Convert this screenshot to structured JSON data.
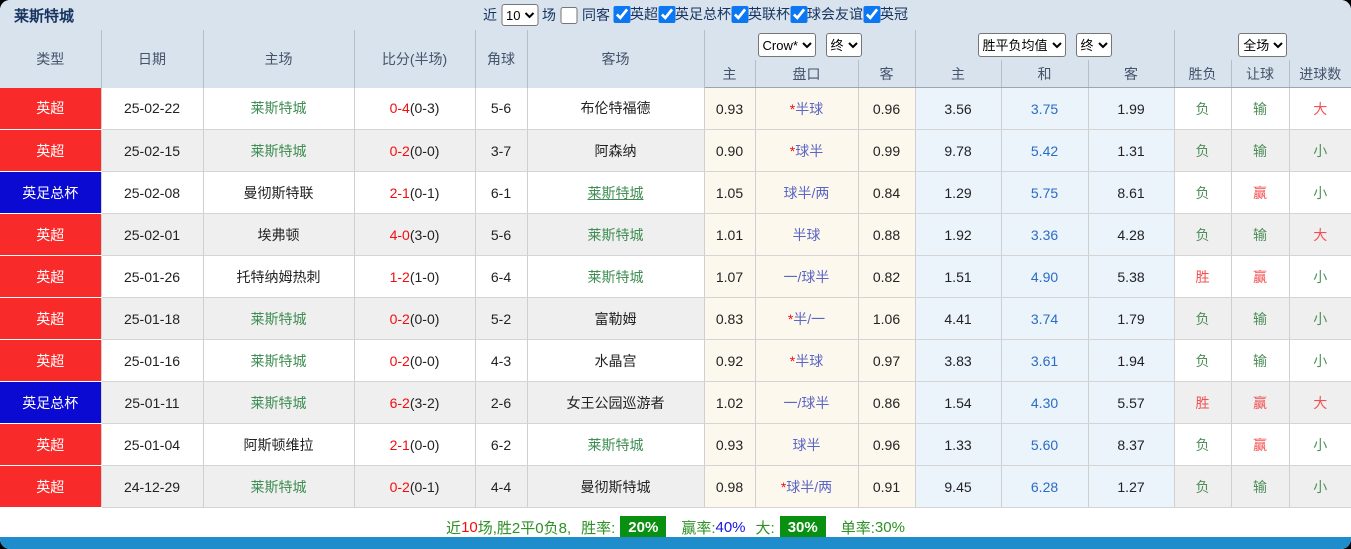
{
  "title": "莱斯特城",
  "filters": {
    "recent_label": "近",
    "recent_value": "10",
    "games_label": "场",
    "same_opponent_label": "同客",
    "same_opponent_checked": false,
    "leagues": [
      {
        "label": "英超",
        "checked": true
      },
      {
        "label": "英足总杯",
        "checked": true
      },
      {
        "label": "英联杯",
        "checked": true
      },
      {
        "label": "球会友谊",
        "checked": true
      },
      {
        "label": "英冠",
        "checked": true
      }
    ]
  },
  "header": {
    "left_columns": [
      "类型",
      "日期",
      "主场",
      "比分(半场)",
      "角球",
      "客场"
    ],
    "dropdowns": {
      "odds_source": "Crow*",
      "odds_time": "终",
      "avg_source": "胜平负均值",
      "avg_time": "终",
      "scope": "全场"
    },
    "sub_columns": [
      "主",
      "盘口",
      "客",
      "主",
      "和",
      "客",
      "胜负",
      "让球",
      "进球数"
    ]
  },
  "rows": [
    {
      "type": "英超",
      "date": "25-02-22",
      "home": "莱斯特城",
      "score_ft": "0-4",
      "score_ht": "(0-3)",
      "corners": "5-6",
      "away": "布伦特福德",
      "away_underline": false,
      "odds_home": "0.93",
      "handicap_star": "*",
      "handicap": "半球",
      "odds_away": "0.96",
      "avg_home": "3.56",
      "avg_draw": "3.75",
      "avg_away": "1.99",
      "result": "负",
      "handicap_result": "输",
      "goals": "大"
    },
    {
      "type": "英超",
      "date": "25-02-15",
      "home": "莱斯特城",
      "score_ft": "0-2",
      "score_ht": "(0-0)",
      "corners": "3-7",
      "away": "阿森纳",
      "away_underline": false,
      "odds_home": "0.90",
      "handicap_star": "*",
      "handicap": "球半",
      "odds_away": "0.99",
      "avg_home": "9.78",
      "avg_draw": "5.42",
      "avg_away": "1.31",
      "result": "负",
      "handicap_result": "输",
      "goals": "小"
    },
    {
      "type": "英足总杯",
      "date": "25-02-08",
      "home": "曼彻斯特联",
      "score_ft": "2-1",
      "score_ht": "(0-1)",
      "corners": "6-1",
      "away": "莱斯特城",
      "away_underline": true,
      "odds_home": "1.05",
      "handicap_star": "",
      "handicap": "球半/两",
      "odds_away": "0.84",
      "avg_home": "1.29",
      "avg_draw": "5.75",
      "avg_away": "8.61",
      "result": "负",
      "handicap_result": "赢",
      "goals": "小"
    },
    {
      "type": "英超",
      "date": "25-02-01",
      "home": "埃弗顿",
      "score_ft": "4-0",
      "score_ht": "(3-0)",
      "corners": "5-6",
      "away": "莱斯特城",
      "away_underline": false,
      "odds_home": "1.01",
      "handicap_star": "",
      "handicap": "半球",
      "odds_away": "0.88",
      "avg_home": "1.92",
      "avg_draw": "3.36",
      "avg_away": "4.28",
      "result": "负",
      "handicap_result": "输",
      "goals": "大"
    },
    {
      "type": "英超",
      "date": "25-01-26",
      "home": "托特纳姆热刺",
      "score_ft": "1-2",
      "score_ht": "(1-0)",
      "corners": "6-4",
      "away": "莱斯特城",
      "away_underline": false,
      "odds_home": "1.07",
      "handicap_star": "",
      "handicap": "一/球半",
      "odds_away": "0.82",
      "avg_home": "1.51",
      "avg_draw": "4.90",
      "avg_away": "5.38",
      "result": "胜",
      "handicap_result": "赢",
      "goals": "小"
    },
    {
      "type": "英超",
      "date": "25-01-18",
      "home": "莱斯特城",
      "score_ft": "0-2",
      "score_ht": "(0-0)",
      "corners": "5-2",
      "away": "富勒姆",
      "away_underline": false,
      "odds_home": "0.83",
      "handicap_star": "*",
      "handicap": "半/一",
      "odds_away": "1.06",
      "avg_home": "4.41",
      "avg_draw": "3.74",
      "avg_away": "1.79",
      "result": "负",
      "handicap_result": "输",
      "goals": "小"
    },
    {
      "type": "英超",
      "date": "25-01-16",
      "home": "莱斯特城",
      "score_ft": "0-2",
      "score_ht": "(0-0)",
      "corners": "4-3",
      "away": "水晶宫",
      "away_underline": false,
      "odds_home": "0.92",
      "handicap_star": "*",
      "handicap": "半球",
      "odds_away": "0.97",
      "avg_home": "3.83",
      "avg_draw": "3.61",
      "avg_away": "1.94",
      "result": "负",
      "handicap_result": "输",
      "goals": "小"
    },
    {
      "type": "英足总杯",
      "date": "25-01-11",
      "home": "莱斯特城",
      "score_ft": "6-2",
      "score_ht": "(3-2)",
      "corners": "2-6",
      "away": "女王公园巡游者",
      "away_underline": false,
      "odds_home": "1.02",
      "handicap_star": "",
      "handicap": "一/球半",
      "odds_away": "0.86",
      "avg_home": "1.54",
      "avg_draw": "4.30",
      "avg_away": "5.57",
      "result": "胜",
      "handicap_result": "赢",
      "goals": "大"
    },
    {
      "type": "英超",
      "date": "25-01-04",
      "home": "阿斯顿维拉",
      "score_ft": "2-1",
      "score_ht": "(0-0)",
      "corners": "6-2",
      "away": "莱斯特城",
      "away_underline": false,
      "odds_home": "0.93",
      "handicap_star": "",
      "handicap": "球半",
      "odds_away": "0.96",
      "avg_home": "1.33",
      "avg_draw": "5.60",
      "avg_away": "8.37",
      "result": "负",
      "handicap_result": "赢",
      "goals": "小"
    },
    {
      "type": "英超",
      "date": "24-12-29",
      "home": "莱斯特城",
      "score_ft": "0-2",
      "score_ht": "(0-1)",
      "corners": "4-4",
      "away": "曼彻斯特城",
      "away_underline": false,
      "odds_home": "0.98",
      "handicap_star": "*",
      "handicap": "球半/两",
      "odds_away": "0.91",
      "avg_home": "9.45",
      "avg_draw": "6.28",
      "avg_away": "1.27",
      "result": "负",
      "handicap_result": "输",
      "goals": "小"
    }
  ],
  "footer": {
    "near_label": "近",
    "near_count": "10",
    "summary": "场,胜2平0负8,",
    "winrate_label": "胜率:",
    "winrate": "20%",
    "winpct_label": "赢率:",
    "winpct": "40%",
    "big_label": "大:",
    "big": "30%",
    "single_label": "单率:",
    "single": "30%"
  },
  "colors": {
    "header_bg": "#d9e3ee",
    "title_color": "#16345f",
    "badge_red": "#f92a2a",
    "badge_blue": "#0a0ad2",
    "team_green": "#3f8e53",
    "score_red": "#f20d0d",
    "result_red": "#f25052",
    "result_green": "#4f8f5a",
    "handicap_text": "#5c66c4",
    "odds_bg": "#fdf8ee",
    "avg_bg": "#ebf3fb",
    "avg_mid_text": "#2a6cc5",
    "footer_green": "#2e9025",
    "footer_badge_bg": "#0a9010",
    "footer_blue": "#1515e8",
    "bottom_bar": "#1f8dcb",
    "checkbox_accent": "#0c77f2"
  }
}
